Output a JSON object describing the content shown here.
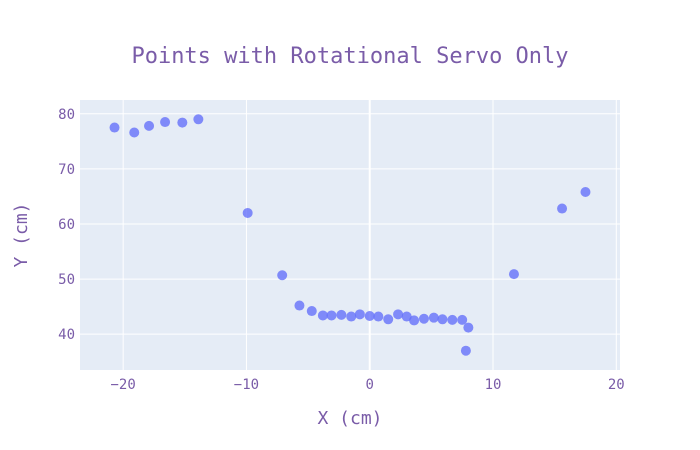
{
  "chart_data": {
    "type": "scatter",
    "title": "Points with Rotational Servo Only",
    "xlabel": "X (cm)",
    "ylabel": "Y (cm)",
    "xlim": [
      -23.5,
      20.3
    ],
    "ylim": [
      33.5,
      82.5
    ],
    "xticks": [
      -20,
      -10,
      0,
      10,
      20
    ],
    "yticks": [
      40,
      50,
      60,
      70,
      80
    ],
    "grid": true,
    "colors": {
      "plot_bg": "#e5ecf6",
      "grid": "#ffffff",
      "marker": "#636efa",
      "text": "#7a5ca8"
    },
    "series": [
      {
        "x": [
          -20.7,
          -19.1,
          -17.9,
          -16.6,
          -15.2,
          -13.9,
          -9.9,
          -7.1,
          -5.7,
          -4.7,
          -3.8,
          -3.1,
          -2.3,
          -1.5,
          -0.8,
          0.0,
          0.7,
          1.5,
          2.3,
          3.0,
          3.6,
          4.4,
          5.2,
          5.9,
          6.7,
          7.5,
          7.8,
          8.0,
          11.7,
          15.6,
          17.5
        ],
        "y": [
          77.5,
          76.6,
          77.8,
          78.5,
          78.4,
          79.0,
          62.0,
          50.7,
          45.2,
          44.2,
          43.4,
          43.4,
          43.5,
          43.2,
          43.6,
          43.3,
          43.2,
          42.7,
          43.6,
          43.2,
          42.5,
          42.8,
          43.0,
          42.7,
          42.6,
          42.6,
          37.0,
          41.2,
          50.9,
          62.8,
          65.8
        ]
      }
    ]
  }
}
